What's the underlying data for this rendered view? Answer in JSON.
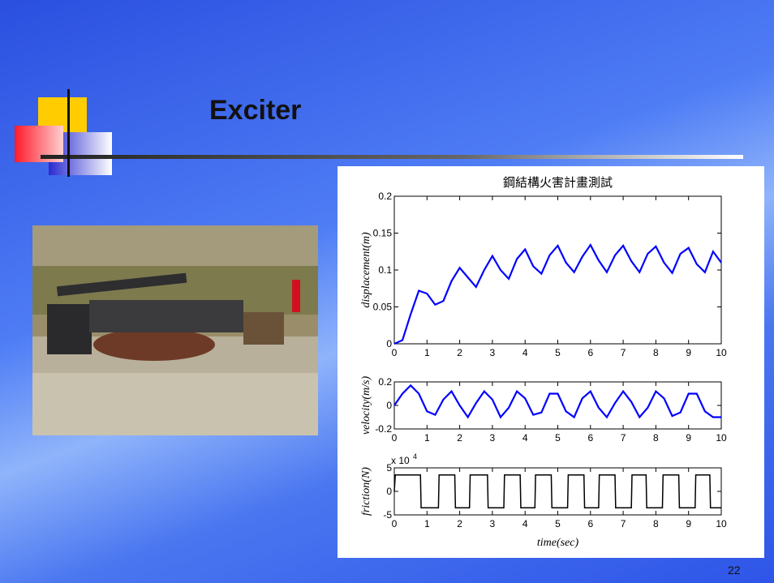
{
  "slide": {
    "title": "Exciter",
    "page_number": "22"
  },
  "chart_data": [
    {
      "type": "line",
      "title": "鋼結構火害計畫測試",
      "ylabel": "displacement(m)",
      "color": "#0000ff",
      "x": [
        0,
        0.25,
        0.5,
        0.75,
        1,
        1.25,
        1.5,
        1.75,
        2,
        2.25,
        2.5,
        2.75,
        3,
        3.25,
        3.5,
        3.75,
        4,
        4.25,
        4.5,
        4.75,
        5,
        5.25,
        5.5,
        5.75,
        6,
        6.25,
        6.5,
        6.75,
        7,
        7.25,
        7.5,
        7.75,
        8,
        8.25,
        8.5,
        8.75,
        9,
        9.25,
        9.5,
        9.75,
        10
      ],
      "values": [
        0,
        0.005,
        0.04,
        0.072,
        0.068,
        0.053,
        0.058,
        0.085,
        0.103,
        0.09,
        0.077,
        0.1,
        0.119,
        0.1,
        0.088,
        0.115,
        0.128,
        0.105,
        0.095,
        0.12,
        0.133,
        0.11,
        0.097,
        0.118,
        0.134,
        0.113,
        0.097,
        0.12,
        0.133,
        0.112,
        0.097,
        0.122,
        0.132,
        0.11,
        0.096,
        0.122,
        0.13,
        0.108,
        0.097,
        0.125,
        0.11
      ],
      "xlim": [
        0,
        10
      ],
      "xticks": [
        0,
        1,
        2,
        3,
        4,
        5,
        6,
        7,
        8,
        9,
        10
      ],
      "ylim": [
        0,
        0.2
      ],
      "yticks": [
        0,
        0.05,
        0.1,
        0.15,
        0.2
      ]
    },
    {
      "type": "line",
      "ylabel": "velocity(m/s)",
      "color": "#0000ff",
      "x": [
        0,
        0.25,
        0.5,
        0.75,
        1,
        1.25,
        1.5,
        1.75,
        2,
        2.25,
        2.5,
        2.75,
        3,
        3.25,
        3.5,
        3.75,
        4,
        4.25,
        4.5,
        4.75,
        5,
        5.25,
        5.5,
        5.75,
        6,
        6.25,
        6.5,
        6.75,
        7,
        7.25,
        7.5,
        7.75,
        8,
        8.25,
        8.5,
        8.75,
        9,
        9.25,
        9.5,
        9.75,
        10
      ],
      "values": [
        0,
        0.1,
        0.17,
        0.1,
        -0.05,
        -0.08,
        0.05,
        0.12,
        0,
        -0.1,
        0.02,
        0.12,
        0.05,
        -0.1,
        -0.02,
        0.12,
        0.06,
        -0.08,
        -0.06,
        0.1,
        0.1,
        -0.05,
        -0.1,
        0.06,
        0.12,
        -0.02,
        -0.1,
        0.02,
        0.12,
        0.03,
        -0.1,
        -0.02,
        0.12,
        0.06,
        -0.09,
        -0.06,
        0.1,
        0.1,
        -0.05,
        -0.1,
        -0.1
      ],
      "xlim": [
        0,
        10
      ],
      "xticks": [
        0,
        1,
        2,
        3,
        4,
        5,
        6,
        7,
        8,
        9,
        10
      ],
      "ylim": [
        -0.2,
        0.2
      ],
      "yticks": [
        -0.2,
        0,
        0.2
      ]
    },
    {
      "type": "line",
      "ylabel": "friction(N)",
      "xlabel": "time(sec)",
      "ylabel_multiplier": "x 10",
      "ylabel_exponent": "4",
      "color": "#000000",
      "x": [
        0,
        0.03,
        0.8,
        0.82,
        1.35,
        1.37,
        1.85,
        1.87,
        2.3,
        2.32,
        2.85,
        2.87,
        3.35,
        3.37,
        3.85,
        3.87,
        4.3,
        4.32,
        4.8,
        4.82,
        5.3,
        5.32,
        5.8,
        5.82,
        6.25,
        6.27,
        6.75,
        6.77,
        7.25,
        7.27,
        7.7,
        7.72,
        8.2,
        8.22,
        8.7,
        8.72,
        9.2,
        9.22,
        9.65,
        9.67,
        10
      ],
      "values": [
        0,
        3.5,
        3.5,
        -3.5,
        -3.5,
        3.5,
        3.5,
        -3.5,
        -3.5,
        3.5,
        3.5,
        -3.5,
        -3.5,
        3.5,
        3.5,
        -3.5,
        -3.5,
        3.5,
        3.5,
        -3.5,
        -3.5,
        3.5,
        3.5,
        -3.5,
        -3.5,
        3.5,
        3.5,
        -3.5,
        -3.5,
        3.5,
        3.5,
        -3.5,
        -3.5,
        3.5,
        3.5,
        -3.5,
        -3.5,
        3.5,
        3.5,
        -3.5,
        -3.5
      ],
      "xlim": [
        0,
        10
      ],
      "xticks": [
        0,
        1,
        2,
        3,
        4,
        5,
        6,
        7,
        8,
        9,
        10
      ],
      "ylim": [
        -5,
        5
      ],
      "yticks": [
        -5,
        0,
        5
      ]
    }
  ]
}
